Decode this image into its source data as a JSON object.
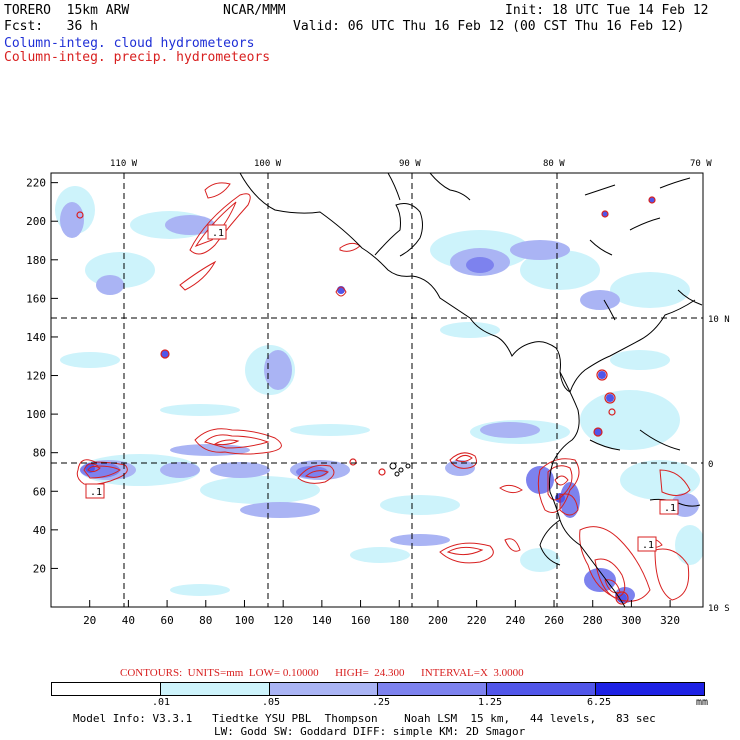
{
  "header": {
    "model": "TORERO  15km ARW",
    "org": "NCAR/MMM",
    "init": "Init: 18 UTC Tue 14 Feb 12",
    "fcst": "Fcst:   36 h",
    "valid": "Valid: 06 UTC Thu 16 Feb 12 (00 CST Thu 16 Feb 12)",
    "field1": "Column-integ. cloud hydrometeors",
    "field2": "Column-integ. precip. hydrometeors"
  },
  "map": {
    "lon_labels": [
      "110 W",
      "100 W",
      "90 W",
      "80 W",
      "70 W"
    ],
    "lat_labels": [
      "10 N",
      "0",
      "10 S"
    ],
    "x_ticks": [
      "20",
      "40",
      "60",
      "80",
      "100",
      "120",
      "140",
      "160",
      "180",
      "200",
      "220",
      "240",
      "260",
      "280",
      "300",
      "320"
    ],
    "y_ticks": [
      "20",
      "40",
      "60",
      "80",
      "100",
      "120",
      "140",
      "160",
      "180",
      "200",
      "220"
    ],
    "contour_labels": [
      ".1",
      ".1",
      ".1",
      ".1"
    ]
  },
  "legend": {
    "contours_text": "CONTOURS:  UNITS=mm  LOW= 0.10000      HIGH=  24.300      INTERVAL=X  3.0000",
    "values": [
      ".01",
      ".05",
      ".25",
      "1.25",
      "6.25"
    ],
    "unit": "mm",
    "colors": [
      "#ffffff",
      "#cdf3fb",
      "#aab4f4",
      "#7d82ee",
      "#5156e9",
      "#1d21e4"
    ]
  },
  "footer": {
    "line1": "Model Info: V3.3.1   Tiedtke YSU PBL  Thompson    Noah LSM  15 km,   44 levels,   83 sec",
    "line2": "LW: Godd SW: Goddard DIFF: simple KM: 2D Smagor"
  }
}
